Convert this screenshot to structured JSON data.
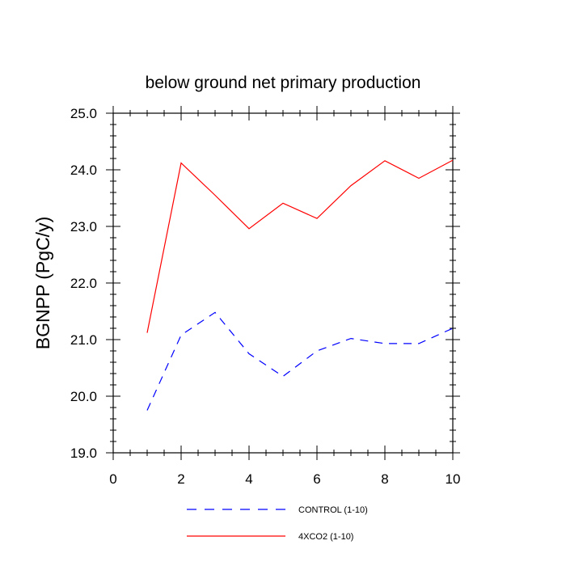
{
  "chart_data": {
    "type": "line",
    "title": "below ground net primary production",
    "xlabel": "",
    "ylabel": "BGNPP  (PgC/y)",
    "xlim": [
      0,
      10
    ],
    "ylim": [
      19.0,
      25.0
    ],
    "x_ticks": [
      "0",
      "2",
      "4",
      "6",
      "8",
      "10"
    ],
    "y_ticks": [
      "19.0",
      "20.0",
      "21.0",
      "22.0",
      "23.0",
      "24.0",
      "25.0"
    ],
    "grid": false,
    "legend_position": "bottom",
    "x": [
      1,
      2,
      3,
      4,
      5,
      6,
      7,
      8,
      9,
      10
    ],
    "series": [
      {
        "name": "CONTROL (1-10)",
        "color": "#0000ff",
        "style": "dashed",
        "values": [
          19.75,
          21.08,
          21.48,
          20.75,
          20.35,
          20.8,
          21.02,
          20.93,
          20.93,
          21.2
        ]
      },
      {
        "name": "4XCO2 (1-10)",
        "color": "#ff0000",
        "style": "solid",
        "values": [
          21.12,
          24.12,
          23.55,
          22.96,
          23.41,
          23.14,
          23.72,
          24.16,
          23.85,
          24.17
        ]
      }
    ]
  }
}
